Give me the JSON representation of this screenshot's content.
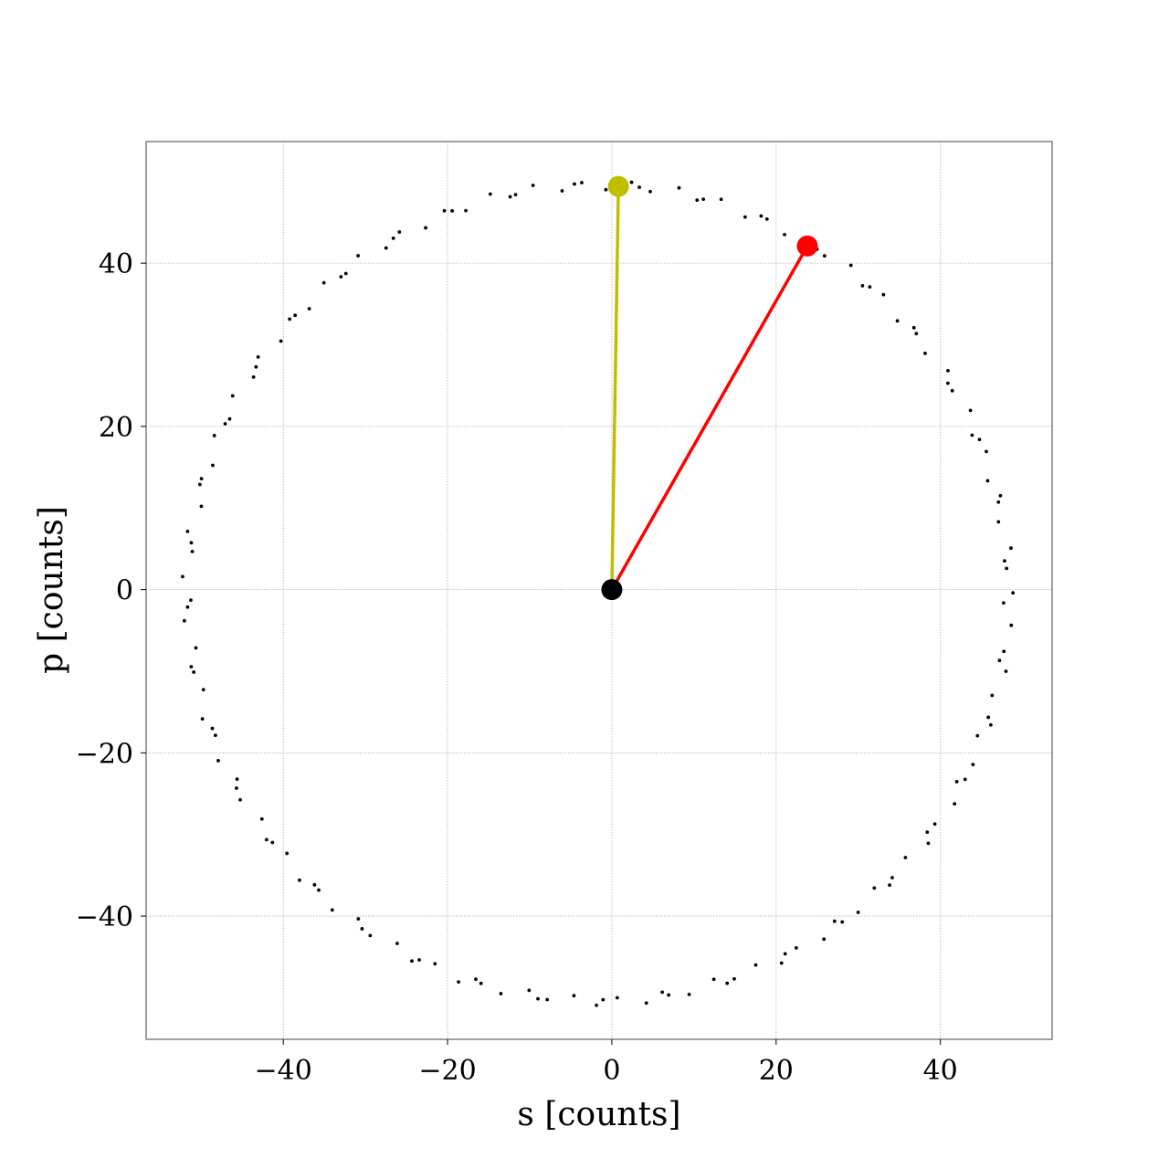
{
  "chart_data": {
    "type": "scatter",
    "xlabel": "s [counts]",
    "ylabel": "p [counts]",
    "xlim": [
      -56.7,
      53.6
    ],
    "ylim": [
      -55.1,
      54.9
    ],
    "x_ticks": [
      -40,
      -20,
      0,
      20,
      40
    ],
    "y_ticks": [
      -40,
      -20,
      0,
      20,
      40
    ],
    "x_tick_labels": [
      "−40",
      "−20",
      "0",
      "20",
      "40"
    ],
    "y_tick_labels": [
      "−40",
      "−20",
      "0",
      "20",
      "40"
    ],
    "grid": true,
    "circle_samples": {
      "center": [
        -1.7,
        -0.4
      ],
      "radius_s": 50.0,
      "radius_p": 50.0,
      "count": 150,
      "color": "#000000"
    },
    "origin": {
      "s": 0.0,
      "p": 0.0,
      "color": "#000000"
    },
    "vectors": [
      {
        "s": 0.8,
        "p": 49.4,
        "color": "#bfbf00"
      },
      {
        "s": 23.8,
        "p": 42.1,
        "color": "#ff0000"
      }
    ]
  }
}
